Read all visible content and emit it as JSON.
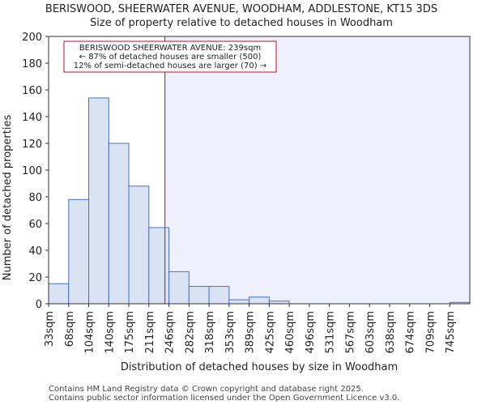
{
  "chart_data": {
    "type": "bar",
    "title": "BERISWOOD, SHEERWATER AVENUE, WOODHAM, ADDLESTONE, KT15 3DS",
    "subtitle": "Size of property relative to detached houses in Woodham",
    "xlabel": "Distribution of detached houses by size in Woodham",
    "ylabel": "Number of detached properties",
    "categories": [
      "33sqm",
      "68sqm",
      "104sqm",
      "140sqm",
      "175sqm",
      "211sqm",
      "246sqm",
      "282sqm",
      "318sqm",
      "353sqm",
      "389sqm",
      "425sqm",
      "460sqm",
      "496sqm",
      "531sqm",
      "567sqm",
      "603sqm",
      "638sqm",
      "674sqm",
      "709sqm",
      "745sqm"
    ],
    "values": [
      15,
      78,
      154,
      120,
      88,
      57,
      24,
      13,
      13,
      3,
      5,
      2,
      0,
      0,
      0,
      0,
      0,
      0,
      0,
      0,
      1
    ],
    "ylim": [
      0,
      200
    ],
    "yticks": [
      0,
      20,
      40,
      60,
      80,
      100,
      120,
      140,
      160,
      180,
      200
    ],
    "marker": {
      "value_index": 5.8,
      "color": "#c0111f"
    },
    "annotation": {
      "lines": [
        "BERISWOOD SHEERWATER AVENUE: 239sqm",
        "← 87% of detached houses are smaller (500)",
        "12% of semi-detached houses are larger (70) →"
      ]
    },
    "colors": {
      "bar_fill": "#dae3f3",
      "bar_stroke": "#4472c4",
      "shade": "#eef1fb",
      "marker": "#c0111f"
    }
  },
  "footer": {
    "line1": "Contains HM Land Registry data © Crown copyright and database right 2025.",
    "line2": "Contains public sector information licensed under the Open Government Licence v3.0."
  }
}
